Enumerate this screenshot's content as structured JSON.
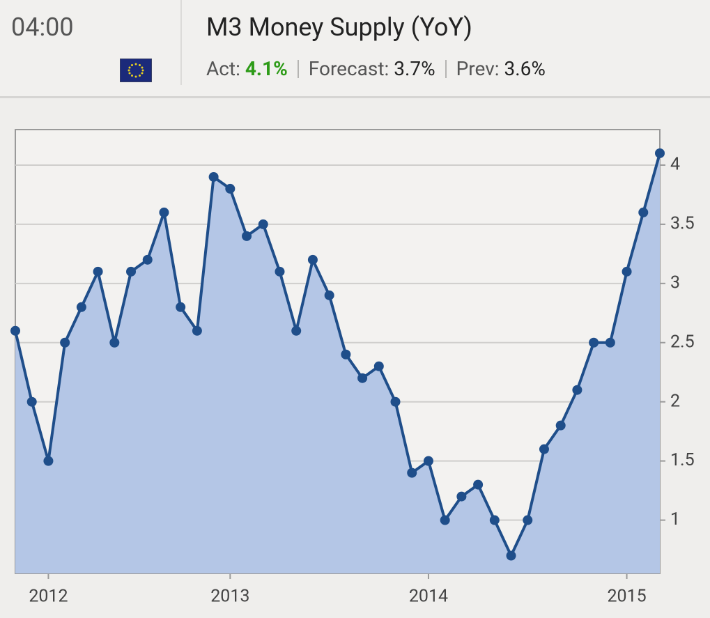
{
  "header": {
    "time": "04:00",
    "title": "M3 Money Supply (YoY)",
    "act_label": "Act:",
    "act": "4.1%",
    "forecast_label": "Forecast:",
    "forecast": "3.7%",
    "prev_label": "Prev:",
    "prev": "3.6%"
  },
  "chart_data": {
    "type": "area-line",
    "categories": [
      null,
      null,
      "2012",
      null,
      null,
      null,
      null,
      null,
      null,
      null,
      null,
      null,
      null,
      "2013",
      null,
      null,
      null,
      null,
      null,
      null,
      null,
      null,
      null,
      null,
      null,
      "2014",
      null,
      null,
      null,
      null,
      null,
      null,
      null,
      null,
      null,
      null,
      null,
      "2015",
      null,
      null
    ],
    "values": [
      2.6,
      2.0,
      1.5,
      2.5,
      2.8,
      3.1,
      2.5,
      3.1,
      3.2,
      3.6,
      2.8,
      2.6,
      3.9,
      3.8,
      3.4,
      3.5,
      3.1,
      2.6,
      3.2,
      2.9,
      2.4,
      2.2,
      2.3,
      2.0,
      1.4,
      1.5,
      1.0,
      1.2,
      1.3,
      1.0,
      0.7,
      1.0,
      1.6,
      1.8,
      2.1,
      2.5,
      2.5,
      3.1,
      3.6,
      4.1
    ],
    "color": "#1f4e8a",
    "fill": "#b4c6e6",
    "ylim": [
      0.55,
      4.3
    ],
    "yticks": [
      1,
      1.5,
      2,
      2.5,
      3,
      3.5,
      4
    ],
    "grid": true
  }
}
